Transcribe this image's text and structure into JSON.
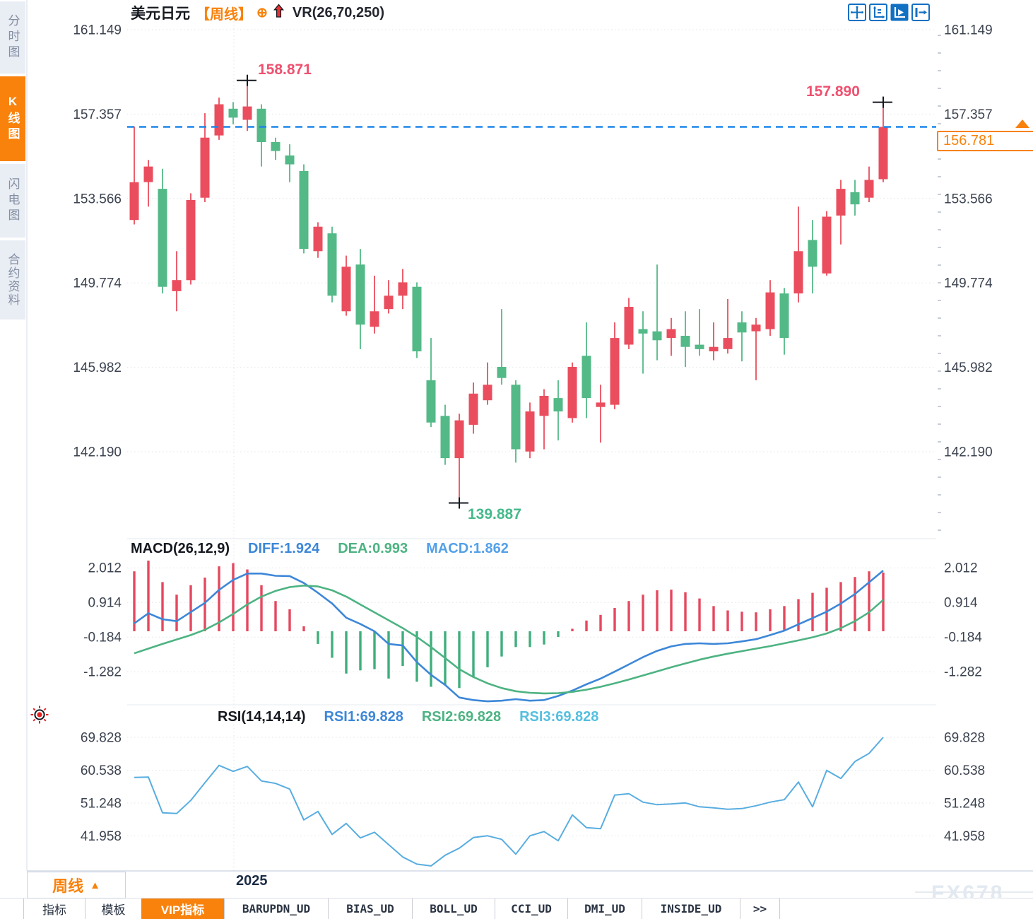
{
  "header": {
    "symbol": "美元日元",
    "period_tag": "【周线】",
    "overlay_indicator": "VR(26,70,250)"
  },
  "toolbar": {
    "icons": [
      "crosshair",
      "axis-scale",
      "pointer-active",
      "pan-right"
    ]
  },
  "sidebar": {
    "items": [
      {
        "label": "分时图",
        "active": false
      },
      {
        "label": "K线图",
        "active": true
      },
      {
        "label": "闪电图",
        "active": false
      },
      {
        "label": "合约资料",
        "active": false
      }
    ]
  },
  "price_tag": {
    "value": "156.781",
    "arrow": "▲"
  },
  "macd_header": {
    "name": "MACD(26,12,9)",
    "diff_label": "DIFF:1.924",
    "dea_label": "DEA:0.993",
    "macd_label": "MACD:1.862"
  },
  "rsi_header": {
    "name": "RSI(14,14,14)",
    "rsi1_label": "RSI1:69.828",
    "rsi2_label": "RSI2:69.828",
    "rsi3_label": "RSI3:69.828"
  },
  "bottom": {
    "period": "周线",
    "period_arrow": "▲",
    "year": "2025",
    "watermark": "FX678",
    "tabs": [
      {
        "label": "指标",
        "active": false,
        "mono": false
      },
      {
        "label": "模板",
        "active": false,
        "mono": false
      },
      {
        "label": "VIP指标",
        "active": true,
        "mono": false
      },
      {
        "label": "BARUPDN_UD",
        "active": false,
        "mono": true
      },
      {
        "label": "BIAS_UD",
        "active": false,
        "mono": true
      },
      {
        "label": "BOLL_UD",
        "active": false,
        "mono": true
      },
      {
        "label": "CCI_UD",
        "active": false,
        "mono": true
      },
      {
        "label": "DMI_UD",
        "active": false,
        "mono": true
      },
      {
        "label": "INSIDE_UD",
        "active": false,
        "mono": true
      },
      {
        "label": ">>",
        "active": false,
        "mono": true
      }
    ]
  },
  "colors": {
    "up": "#EA4E5E",
    "down": "#53B987",
    "accent_orange": "#f8820c",
    "last_price_line": "#1d86ea",
    "diff_line": "#3d87d8",
    "dea_line": "#4db382",
    "rsi_line": "#58ade0",
    "hist_pos": "#e5485e",
    "hist_neg": "#3fae7c",
    "annotation_pink": "#ee5170",
    "annotation_green": "#46b98c"
  },
  "chart_data": {
    "type": "candlestick+macd+rsi",
    "title": "美元日元 周线 (USD/JPY weekly)",
    "last_price": 156.781,
    "annotations": {
      "high1": "158.871",
      "high2": "157.890",
      "low": "139.887"
    },
    "price_axis_labels": [
      "161.149",
      "157.357",
      "153.566",
      "149.774",
      "145.982",
      "142.190"
    ],
    "macd_axis_labels": [
      "2.012",
      "0.914",
      "-0.184",
      "-1.282"
    ],
    "rsi_axis_labels": [
      "69.828",
      "60.538",
      "51.248",
      "41.958"
    ],
    "x_year_label": "2025",
    "candles_note": "each row = [direction(r=up/g=down), high, body_top, body_bottom, low]",
    "candles": [
      [
        "r",
        156.8,
        154.3,
        152.6,
        152.4
      ],
      [
        "r",
        155.3,
        155.0,
        154.3,
        153.2
      ],
      [
        "g",
        154.9,
        154.0,
        149.6,
        149.3
      ],
      [
        "r",
        151.2,
        149.9,
        149.4,
        148.5
      ],
      [
        "r",
        153.8,
        153.5,
        149.9,
        149.7
      ],
      [
        "r",
        157.4,
        156.3,
        153.6,
        153.4
      ],
      [
        "r",
        158.1,
        157.8,
        156.4,
        156.2
      ],
      [
        "g",
        157.9,
        157.6,
        157.2,
        156.9
      ],
      [
        "r",
        158.871,
        157.7,
        157.1,
        156.6
      ],
      [
        "g",
        157.8,
        157.6,
        156.1,
        155.0
      ],
      [
        "g",
        156.3,
        156.1,
        155.7,
        155.3
      ],
      [
        "g",
        156.0,
        155.5,
        155.1,
        154.3
      ],
      [
        "g",
        155.1,
        154.8,
        151.3,
        151.1
      ],
      [
        "r",
        152.5,
        152.3,
        151.2,
        150.9
      ],
      [
        "g",
        152.3,
        152.0,
        149.2,
        148.9
      ],
      [
        "r",
        151.0,
        150.5,
        148.5,
        148.3
      ],
      [
        "g",
        151.3,
        150.6,
        147.9,
        146.8
      ],
      [
        "r",
        150.1,
        148.5,
        147.8,
        147.5
      ],
      [
        "r",
        149.9,
        149.2,
        148.6,
        148.4
      ],
      [
        "r",
        150.4,
        149.8,
        149.2,
        148.6
      ],
      [
        "g",
        149.8,
        149.6,
        146.7,
        146.4
      ],
      [
        "g",
        147.3,
        145.4,
        143.5,
        143.3
      ],
      [
        "g",
        144.3,
        143.8,
        141.9,
        141.6
      ],
      [
        "r",
        143.9,
        143.6,
        141.9,
        139.887
      ],
      [
        "r",
        145.3,
        144.8,
        143.4,
        143.0
      ],
      [
        "r",
        146.2,
        145.2,
        144.5,
        144.3
      ],
      [
        "g",
        148.6,
        146.0,
        145.5,
        145.2
      ],
      [
        "g",
        145.4,
        145.2,
        142.3,
        141.7
      ],
      [
        "r",
        144.4,
        144.0,
        142.2,
        141.9
      ],
      [
        "r",
        145.0,
        144.7,
        143.8,
        142.3
      ],
      [
        "g",
        145.4,
        144.6,
        144.0,
        142.7
      ],
      [
        "r",
        146.2,
        146.0,
        143.7,
        143.5
      ],
      [
        "g",
        148.0,
        146.5,
        144.6,
        143.7
      ],
      [
        "r",
        145.2,
        144.4,
        144.2,
        142.6
      ],
      [
        "r",
        148.0,
        147.3,
        144.3,
        144.1
      ],
      [
        "r",
        149.1,
        148.7,
        147.0,
        146.8
      ],
      [
        "g",
        148.5,
        147.7,
        147.5,
        145.7
      ],
      [
        "g",
        150.6,
        147.6,
        147.2,
        146.3
      ],
      [
        "r",
        148.2,
        147.7,
        147.3,
        146.5
      ],
      [
        "g",
        148.5,
        147.4,
        146.9,
        146.0
      ],
      [
        "g",
        148.6,
        147.0,
        146.8,
        146.5
      ],
      [
        "r",
        148.0,
        146.9,
        146.7,
        146.3
      ],
      [
        "r",
        149.05,
        147.3,
        146.8,
        146.6
      ],
      [
        "g",
        148.5,
        148.0,
        147.55,
        146.25
      ],
      [
        "r",
        148.2,
        147.9,
        147.6,
        145.4
      ],
      [
        "r",
        149.9,
        149.35,
        147.7,
        147.4
      ],
      [
        "g",
        149.55,
        149.3,
        147.3,
        146.55
      ],
      [
        "r",
        153.2,
        151.2,
        149.3,
        148.9
      ],
      [
        "g",
        152.6,
        151.7,
        150.5,
        149.3
      ],
      [
        "r",
        153.0,
        152.75,
        150.2,
        150.1
      ],
      [
        "r",
        154.4,
        154.0,
        152.8,
        151.5
      ],
      [
        "g",
        154.4,
        153.85,
        153.3,
        152.8
      ],
      [
        "r",
        155.0,
        154.4,
        153.6,
        153.4
      ],
      [
        "r",
        157.89,
        156.781,
        154.43,
        154.3
      ]
    ],
    "markers": [
      {
        "i": 8,
        "p": 158.871,
        "side": "high"
      },
      {
        "i": 23,
        "p": 139.887,
        "side": "low"
      },
      {
        "i": 53,
        "p": 157.89,
        "side": "high"
      }
    ],
    "macd": {
      "diff": [
        0.25,
        0.57,
        0.38,
        0.32,
        0.61,
        0.9,
        1.31,
        1.63,
        1.83,
        1.83,
        1.76,
        1.75,
        1.53,
        1.22,
        0.88,
        0.43,
        0.23,
        0.0,
        -0.4,
        -0.45,
        -0.98,
        -1.38,
        -1.7,
        -2.1,
        -2.18,
        -2.22,
        -2.2,
        -2.15,
        -2.2,
        -2.18,
        -2.05,
        -1.88,
        -1.68,
        -1.5,
        -1.28,
        -1.05,
        -0.82,
        -0.62,
        -0.48,
        -0.4,
        -0.38,
        -0.4,
        -0.38,
        -0.32,
        -0.25,
        -0.12,
        0.02,
        0.22,
        0.42,
        0.62,
        0.88,
        1.18,
        1.55,
        1.924
      ],
      "dea": [
        -0.7,
        -0.55,
        -0.4,
        -0.26,
        -0.12,
        0.05,
        0.28,
        0.55,
        0.85,
        1.1,
        1.28,
        1.4,
        1.45,
        1.42,
        1.3,
        1.1,
        0.85,
        0.6,
        0.35,
        0.1,
        -0.18,
        -0.5,
        -0.85,
        -1.2,
        -1.45,
        -1.65,
        -1.8,
        -1.9,
        -1.95,
        -1.97,
        -1.96,
        -1.92,
        -1.85,
        -1.76,
        -1.65,
        -1.53,
        -1.4,
        -1.27,
        -1.14,
        -1.02,
        -0.9,
        -0.8,
        -0.71,
        -0.63,
        -0.55,
        -0.47,
        -0.38,
        -0.29,
        -0.19,
        -0.07,
        0.1,
        0.32,
        0.6,
        0.993
      ],
      "diff_current": 1.924,
      "dea_current": 0.993,
      "macd_current": 1.862
    },
    "rsi": {
      "values": [
        58.5,
        58.6,
        48.5,
        48.3,
        52.0,
        57.0,
        61.9,
        60.2,
        61.6,
        57.5,
        56.8,
        55.2,
        46.5,
        48.9,
        42.4,
        45.5,
        41.4,
        43.0,
        39.5,
        36.0,
        34.0,
        33.5,
        36.5,
        38.5,
        41.5,
        42.0,
        41.0,
        36.8,
        42.0,
        43.2,
        40.6,
        47.9,
        44.3,
        44.0,
        53.5,
        53.9,
        51.5,
        50.8,
        51.0,
        51.3,
        50.2,
        49.9,
        49.5,
        49.7,
        50.5,
        51.5,
        52.2,
        57.2,
        50.2,
        60.5,
        58.2,
        63.0,
        65.3,
        69.828
      ],
      "current": 69.828
    }
  }
}
